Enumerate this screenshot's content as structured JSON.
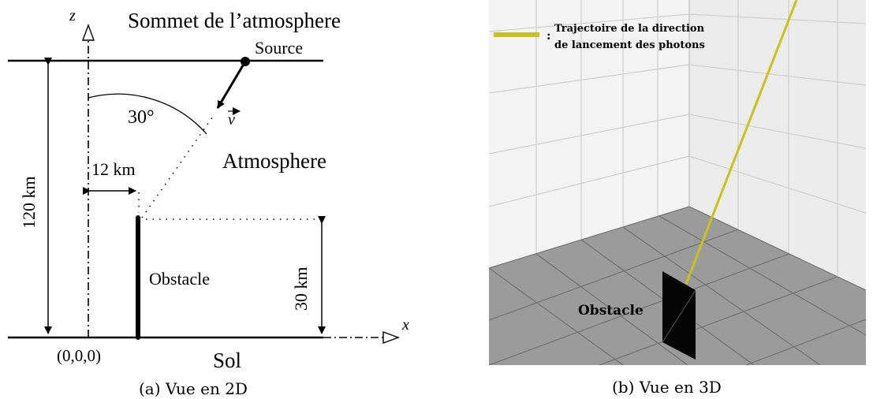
{
  "panel_2d": {
    "caption": "(a) Vue en 2D",
    "top_label": "Sommet de l’atmosphere",
    "source_label": "Source",
    "vector_label": "v",
    "angle_label": "30°",
    "atmosphere_label": "Atmosphere",
    "distance_label": "12 km",
    "height_label": "120 km",
    "obstacle_height_label": "30 km",
    "obstacle_label": "Obstacle",
    "origin_label": "(0,0,0)",
    "ground_label": "Sol",
    "z_axis_label": "z",
    "x_axis_label": "x"
  },
  "panel_3d": {
    "caption": "(b) Vue en 3D",
    "legend_line1": "Trajectoire de la direction",
    "legend_line2": "de lancement des photons",
    "legend_colon": ":",
    "obstacle_label": "Obstacle",
    "trajectory_color": "#c8c21a",
    "floor_color": "#9a9a9a",
    "wall_color": "#efefef"
  }
}
